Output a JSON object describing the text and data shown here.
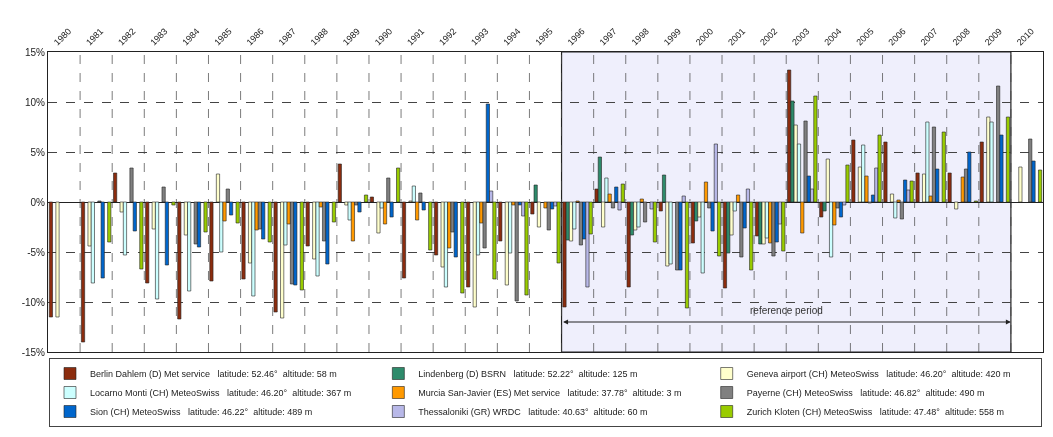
{
  "chart_data": {
    "type": "bar",
    "categories": [
      "1980",
      "1981",
      "1982",
      "1983",
      "1984",
      "1985",
      "1986",
      "1987",
      "1988",
      "1989",
      "1990",
      "1991",
      "1992",
      "1993",
      "1994",
      "1995",
      "1996",
      "1997",
      "1998",
      "1999",
      "2000",
      "2001",
      "2002",
      "2003",
      "2004",
      "2005",
      "2006",
      "2007",
      "2008",
      "2009",
      "2010"
    ],
    "series": [
      {
        "name": "Berlin Dahlem (D) Met service   latitude: 52.46°  altitude: 58 m",
        "color": "#8b2c0e",
        "values": [
          -11.5,
          -14,
          2.9,
          -8.1,
          -11.7,
          -7.9,
          -7.7,
          -11.0,
          -4.4,
          3.8,
          0.5,
          -7.6,
          -5.3,
          -8.5,
          -3.9,
          -1.2,
          -10.5,
          1.3,
          -8.5,
          -0.9,
          -4.1,
          -8.6,
          -3.4,
          13.2,
          -1.5,
          6.2,
          6.0,
          2.9,
          2.9,
          6.0,
          null
        ]
      },
      {
        "name": "Lindenberg (D) BSRN   latitude: 52.22°  altitude: 125 m",
        "color": "#2e8b6b",
        "values": [
          null,
          null,
          null,
          null,
          null,
          null,
          null,
          null,
          null,
          null,
          null,
          null,
          null,
          null,
          null,
          1.7,
          -3.8,
          4.5,
          -3.3,
          2.7,
          -1.9,
          -5.1,
          -4.2,
          10.1,
          -0.9,
          null,
          null,
          null,
          null,
          null,
          null
        ]
      },
      {
        "name": "Geneva airport (CH) MeteoSwiss   latitude: 46.20°  altitude: 420 m",
        "color": "#ffffcc",
        "values": [
          -11.5,
          -4.4,
          -1.0,
          -2.7,
          -3.3,
          2.8,
          -6.1,
          -11.6,
          -5.7,
          -0.3,
          -3.1,
          0.1,
          -6.5,
          -10.5,
          -8.3,
          -2.5,
          -3.9,
          -2.5,
          -2.8,
          -6.4,
          -1.5,
          -3.3,
          -4.2,
          7.7,
          4.3,
          3.5,
          0.8,
          2.8,
          -0.7,
          8.5,
          3.5
        ]
      },
      {
        "name": "Locarno Monti (CH) MeteoSwiss   latitude: 46.20°  altitude: 367 m",
        "color": "#ccffff",
        "values": [
          null,
          -8.1,
          -5.3,
          -9.7,
          -8.9,
          -5.0,
          -9.4,
          -4.3,
          -7.4,
          -1.8,
          -0.6,
          1.6,
          -8.5,
          -5.3,
          -5.1,
          null,
          -2.7,
          2.4,
          -2.5,
          -6.2,
          -7.1,
          -0.9,
          -3.6,
          5.8,
          -5.5,
          5.7,
          -1.6,
          8.0,
          null,
          8.0,
          null
        ]
      },
      {
        "name": "Murcia San-Javier (ES) Met service   latitude: 37.78°  altitude: 3 m",
        "color": "#ff9900",
        "values": [
          null,
          null,
          null,
          null,
          null,
          -1.9,
          -2.8,
          -2.2,
          -0.5,
          -3.9,
          -2.2,
          -1.8,
          -4.6,
          -2.1,
          -0.3,
          -0.6,
          0.1,
          0.8,
          0.3,
          null,
          2.0,
          0.7,
          -4.1,
          -3.1,
          -2.3,
          2.6,
          0.2,
          0.6,
          2.5,
          null,
          null
        ]
      },
      {
        "name": "Payerne (CH) MeteoSwiss   latitude: 46.82°  altitude: 490 m",
        "color": "#808080",
        "values": [
          null,
          0.1,
          3.4,
          1.5,
          -4.2,
          1.3,
          -2.7,
          -8.2,
          -3.9,
          -0.3,
          2.4,
          0.9,
          -3.0,
          -4.6,
          -9.9,
          -2.8,
          -4.3,
          -0.6,
          -2.0,
          -6.8,
          -0.6,
          -5.5,
          -5.4,
          8.1,
          -0.6,
          -0.1,
          -1.7,
          7.5,
          3.3,
          11.6,
          6.3
        ]
      },
      {
        "name": "Sion (CH) MeteoSwiss   latitude: 46.22°  altitude: 489 m",
        "color": "#0066cc",
        "values": [
          null,
          -7.6,
          -2.9,
          -6.3,
          -4.5,
          -1.3,
          -3.7,
          -8.3,
          -6.2,
          -1.0,
          -1.5,
          -0.8,
          -5.5,
          9.8,
          -0.3,
          -0.7,
          -3.7,
          1.5,
          null,
          -6.8,
          -2.9,
          -2.6,
          -4.0,
          2.6,
          -1.5,
          0.7,
          2.2,
          3.3,
          5.0,
          6.7,
          4.1
        ]
      },
      {
        "name": "Thessaloniki (GR) WRDC   latitude: 40.63°  altitude: 60 m",
        "color": "#b8b8e8",
        "values": [
          null,
          null,
          null,
          null,
          null,
          null,
          null,
          null,
          null,
          null,
          null,
          null,
          null,
          1.1,
          -1.4,
          -0.4,
          -8.5,
          -0.8,
          -0.7,
          0.6,
          5.8,
          1.3,
          -2.2,
          1.3,
          -0.3,
          3.4,
          1.2,
          null,
          null,
          null,
          null
        ]
      },
      {
        "name": "Zurich Kloten (CH) MeteoSwiss   latitude: 47.48°  altitude: 558 m",
        "color": "#99cc00",
        "values": [
          null,
          -4.0,
          -6.7,
          -0.3,
          -3.0,
          -2.1,
          -4.0,
          -8.8,
          -2.0,
          0.7,
          3.4,
          -4.8,
          -9.1,
          -7.7,
          -9.3,
          -6.1,
          -3.2,
          1.8,
          -4.0,
          -10.6,
          -5.4,
          -6.8,
          -4.9,
          10.6,
          3.7,
          6.7,
          2.1,
          7.0,
          0.1,
          8.5,
          3.2
        ]
      }
    ],
    "ylim": [
      -15,
      15
    ],
    "yticks": [
      {
        "value": -15,
        "label": "-15%"
      },
      {
        "value": -10,
        "label": "-10%"
      },
      {
        "value": -5,
        "label": "-5%"
      },
      {
        "value": 0,
        "label": "0%"
      },
      {
        "value": 5,
        "label": "5%"
      },
      {
        "value": 10,
        "label": "10%"
      },
      {
        "value": 15,
        "label": "15%"
      }
    ],
    "bands": [
      {
        "axis": "x",
        "from": "1996",
        "to": "2009",
        "label": "reference period",
        "color": "#efeffc"
      }
    ],
    "grid": true,
    "legend": "bottom"
  }
}
